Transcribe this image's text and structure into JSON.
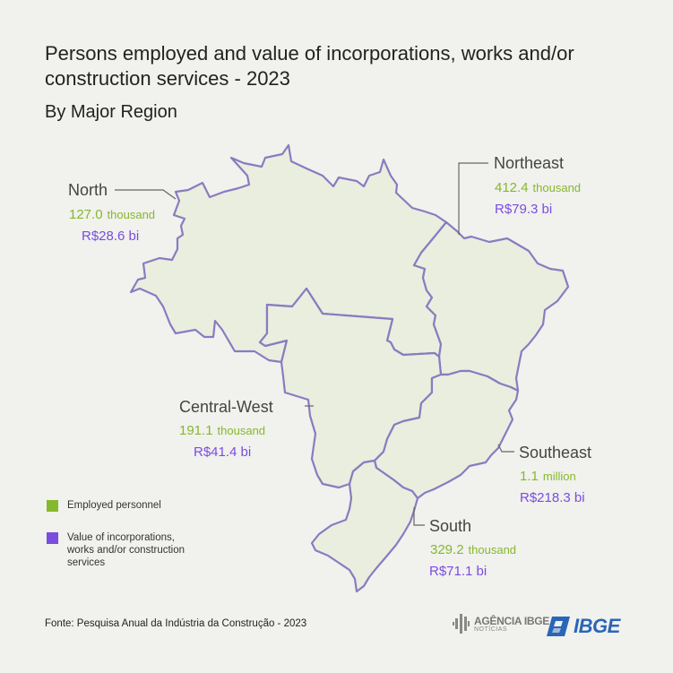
{
  "title": "Persons employed and value of incorporations, works and/or construction services - 2023",
  "subtitle": "By Major Region",
  "colors": {
    "employed": "#86b82e",
    "value": "#7a4de0",
    "map_fill": "#e9eedf",
    "map_stroke": "#8a7bc0",
    "background": "#f1f1ee",
    "ibge_blue": "#2a66b8"
  },
  "regions": [
    {
      "name": "North",
      "employed": "127.0",
      "employed_unit": "thousand",
      "value": "R$28.6 bi"
    },
    {
      "name": "Northeast",
      "employed": "412.4",
      "employed_unit": "thousand",
      "value": "R$79.3 bi"
    },
    {
      "name": "Central-West",
      "employed": "191.1",
      "employed_unit": "thousand",
      "value": "R$41.4 bi"
    },
    {
      "name": "Southeast",
      "employed": "1.1",
      "employed_unit": "million",
      "value": "R$218.3 bi"
    },
    {
      "name": "South",
      "employed": "329.2",
      "employed_unit": "thousand",
      "value": "R$71.1 bi"
    }
  ],
  "legend": [
    {
      "label": "Employed personnel",
      "color": "#86b82e"
    },
    {
      "label": "Value of incorporations, works and/or construction services",
      "color": "#7a4de0"
    }
  ],
  "source": "Fonte: Pesquisa Anual da Indústria da Construção - 2023",
  "logos": {
    "agencia": "AGÊNCIA IBGE",
    "agencia_sub": "NOTÍCIAS",
    "ibge": "IBGE"
  }
}
